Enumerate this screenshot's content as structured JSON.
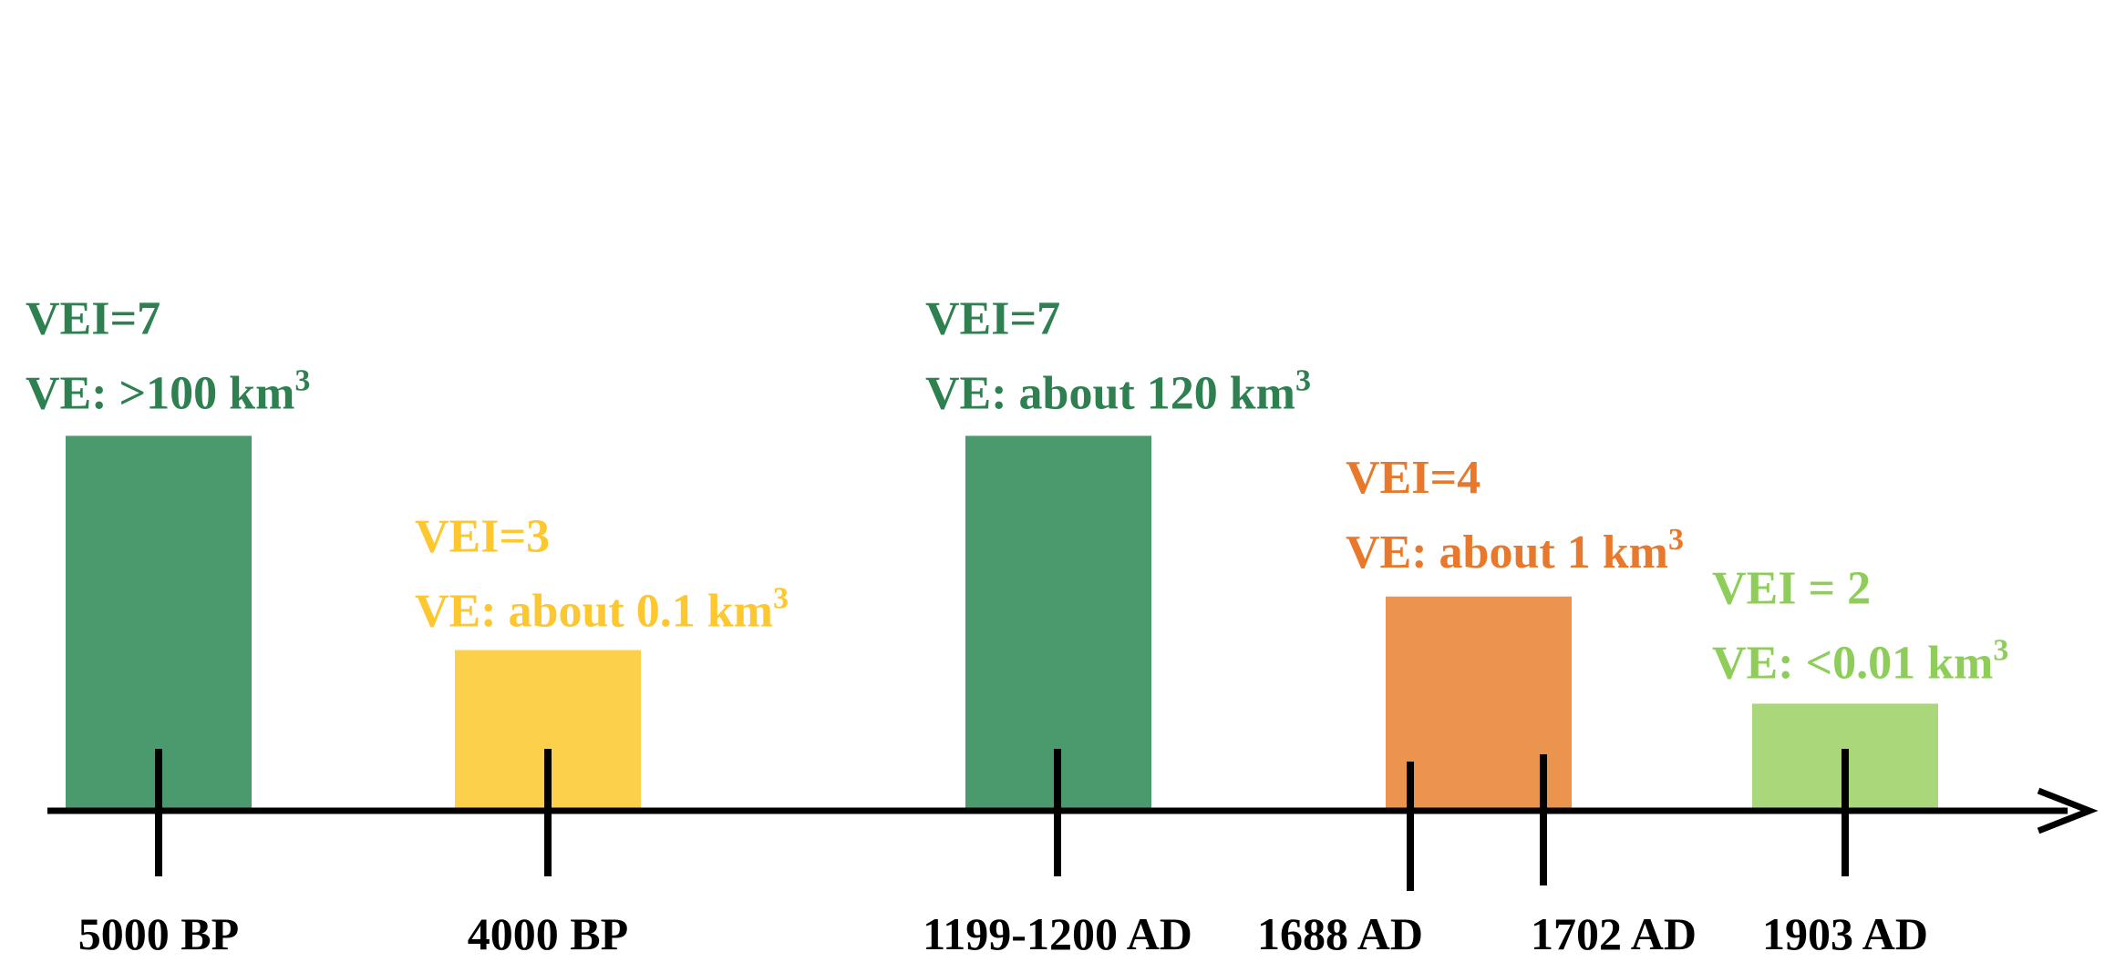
{
  "chart_data": {
    "type": "bar",
    "title": "",
    "xlabel": "",
    "ylabel": "",
    "bars": [
      {
        "name": "bar-5000bp",
        "vei": 7,
        "vei_text": "VEI=7",
        "ve_text": "VE: >100 km",
        "ve_sup": "3",
        "color": "#4a9a6e"
      },
      {
        "name": "bar-4000bp",
        "vei": 3,
        "vei_text": "VEI=3",
        "ve_text": "VE: about 0.1 km",
        "ve_sup": "3",
        "color": "#fcd04b"
      },
      {
        "name": "bar-1199-1200ad",
        "vei": 7,
        "vei_text": "VEI=7",
        "ve_text": "VE: about 120 km",
        "ve_sup": "3",
        "color": "#4a9a6e"
      },
      {
        "name": "bar-1688-1702ad",
        "vei": 4,
        "vei_text": "VEI=4",
        "ve_text": "VE: about 1 km",
        "ve_sup": "3",
        "color": "#eb944d"
      },
      {
        "name": "bar-1903ad",
        "vei": 2,
        "vei_text": "VEI = 2",
        "ve_text": "VE: <0.01 km",
        "ve_sup": "3",
        "color": "#a9d77a"
      }
    ],
    "label_colors": [
      "#2e8050",
      "#fcc72f",
      "#2e8050",
      "#e8792c",
      "#8fcd5a"
    ],
    "ticks": [
      "5000 BP",
      "4000 BP",
      "1199-1200 AD",
      "1688 AD",
      "1702 AD",
      "1903 AD"
    ],
    "axis_color": "#000000",
    "grid": false,
    "legend": "none"
  }
}
